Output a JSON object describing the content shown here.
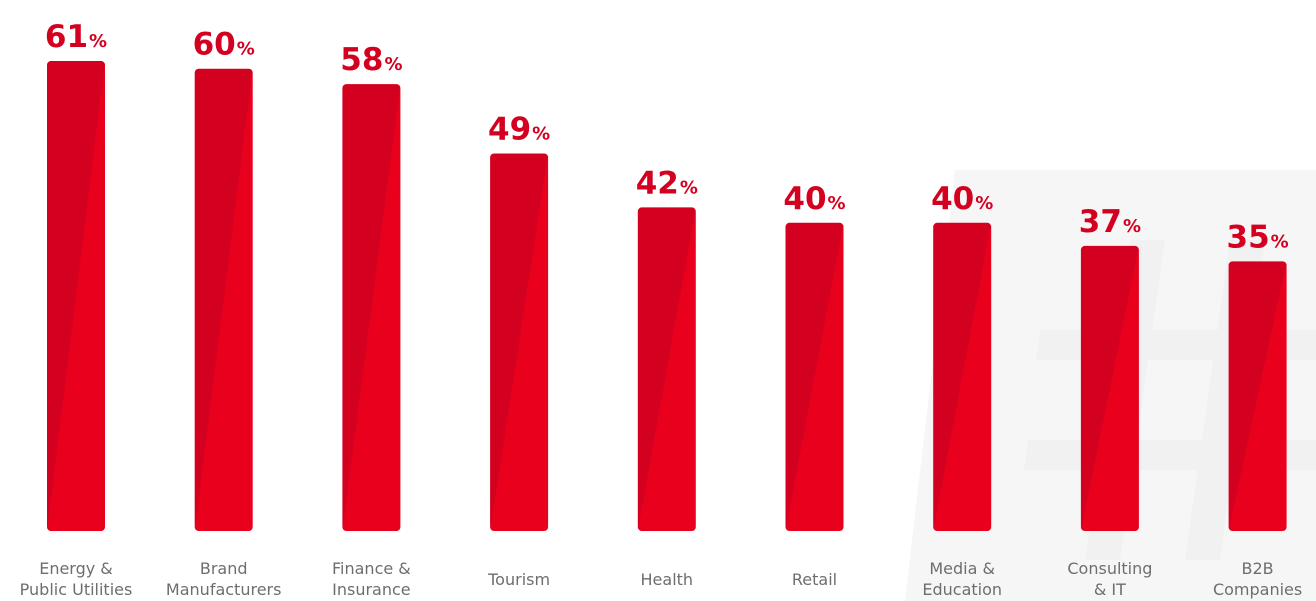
{
  "colors": {
    "bar": "#d4001f",
    "bar_highlight": "#e8001c",
    "value_label": "#d40020",
    "category_label": "#6e6e6e",
    "watermark": "#f6f6f6"
  },
  "chart_data": {
    "type": "bar",
    "title": "",
    "xlabel": "",
    "ylabel": "",
    "ylim": [
      0,
      61
    ],
    "value_suffix": "%",
    "categories": [
      [
        "Energy &",
        "Public Utilities"
      ],
      [
        "Brand",
        "Manufacturers"
      ],
      [
        "Finance &",
        "Insurance"
      ],
      [
        "Tourism"
      ],
      [
        "Health"
      ],
      [
        "Retail"
      ],
      [
        "Media &",
        "Education"
      ],
      [
        "Consulting",
        "& IT"
      ],
      [
        "B2B",
        "Companies"
      ]
    ],
    "values": [
      61,
      60,
      58,
      49,
      42,
      40,
      40,
      37,
      35
    ],
    "grid": false,
    "legend": "none"
  }
}
